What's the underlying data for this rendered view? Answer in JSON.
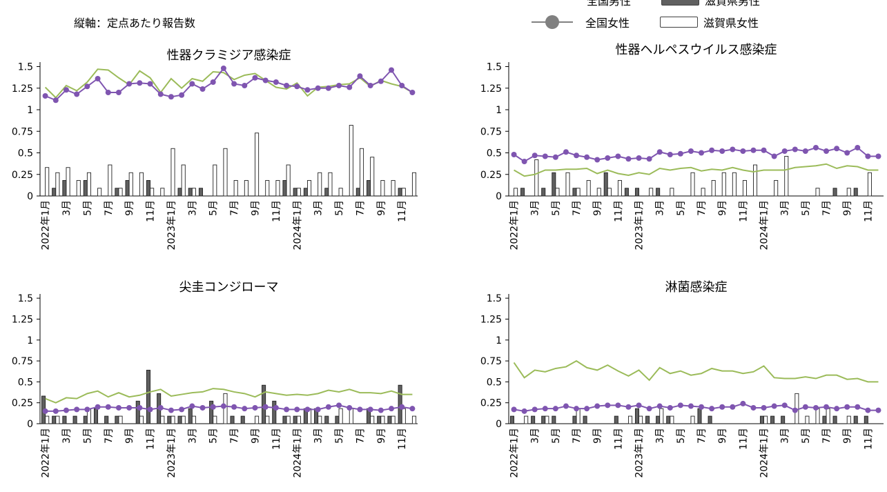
{
  "note": "縦軸：定点あたり報告数",
  "legend": {
    "national_male": "全国男性",
    "shiga_male": "滋賀県男性",
    "national_female": "全国女性",
    "shiga_female": "滋賀県女性"
  },
  "colors": {
    "national_male": "#9bbb59",
    "national_female": "#7f55b0",
    "shiga_male_fill": "#606060",
    "shiga_female_fill": "#ffffff",
    "bar_stroke": "#202020",
    "axis": "#000000"
  },
  "chart_data": [
    {
      "type": "bar",
      "title": "性器クラミジア感染症",
      "ylim": [
        0,
        1.6
      ],
      "yticks": [
        "0",
        "0.25",
        "0.5",
        "0.75",
        "1",
        "1.25",
        "1.5"
      ],
      "x_tick_labels": [
        "2022年1月",
        "3月",
        "5月",
        "7月",
        "9月",
        "11月",
        "2023年1月",
        "3月",
        "5月",
        "7月",
        "9月",
        "11月",
        "2024年1月",
        "3月",
        "5月",
        "7月",
        "9月",
        "11月"
      ],
      "series": [
        {
          "name": "全国男性",
          "kind": "line",
          "values": [
            1.26,
            1.14,
            1.28,
            1.22,
            1.32,
            1.47,
            1.46,
            1.37,
            1.29,
            1.45,
            1.37,
            1.2,
            1.36,
            1.25,
            1.36,
            1.33,
            1.44,
            1.43,
            1.35,
            1.4,
            1.42,
            1.34,
            1.26,
            1.24,
            1.31,
            1.16,
            1.26,
            1.27,
            1.29,
            1.3,
            1.37,
            1.27,
            1.34,
            1.3,
            1.27,
            1.2
          ]
        },
        {
          "name": "全国女性",
          "kind": "line-marker",
          "values": [
            1.16,
            1.11,
            1.23,
            1.18,
            1.27,
            1.36,
            1.2,
            1.2,
            1.3,
            1.31,
            1.3,
            1.18,
            1.15,
            1.17,
            1.3,
            1.24,
            1.32,
            1.48,
            1.3,
            1.28,
            1.37,
            1.34,
            1.32,
            1.28,
            1.27,
            1.23,
            1.25,
            1.25,
            1.28,
            1.26,
            1.39,
            1.28,
            1.33,
            1.46,
            1.28,
            1.2
          ]
        },
        {
          "name": "滋賀県男性",
          "kind": "bar",
          "values": [
            0,
            0.09,
            0.18,
            0,
            0.18,
            0,
            0,
            0.09,
            0.18,
            0,
            0.18,
            0,
            0,
            0.09,
            0.09,
            0.09,
            0,
            0,
            0,
            0,
            0,
            0,
            0,
            0.18,
            0.09,
            0.09,
            0,
            0.09,
            0,
            0,
            0.09,
            0.18,
            0,
            0,
            0.09,
            0
          ]
        },
        {
          "name": "滋賀県女性",
          "kind": "bar",
          "values": [
            0.33,
            0.27,
            0.33,
            0.18,
            0.27,
            0.09,
            0.36,
            0.09,
            0.27,
            0.27,
            0.09,
            0.09,
            0.55,
            0.36,
            0.09,
            0,
            0.36,
            0.55,
            0.18,
            0.18,
            0.73,
            0.18,
            0.18,
            0.36,
            0.09,
            0.18,
            0.27,
            0.27,
            0.09,
            0.82,
            0.55,
            0.45,
            0.18,
            0.18,
            0.09,
            0.27
          ]
        }
      ]
    },
    {
      "type": "bar",
      "title": "性器ヘルペスウイルス感染症",
      "ylim": [
        0,
        1.6
      ],
      "yticks": [
        "0",
        "0.25",
        "0.5",
        "0.75",
        "1",
        "1.25",
        "1.5"
      ],
      "x_tick_labels": [
        "2022年1月",
        "3月",
        "5月",
        "7月",
        "9月",
        "11月",
        "2023年1月",
        "3月",
        "5月",
        "7月",
        "9月",
        "11月",
        "2024年1月",
        "3月",
        "5月",
        "7月",
        "9月",
        "11月"
      ],
      "series": [
        {
          "name": "全国男性",
          "kind": "line",
          "values": [
            0.3,
            0.23,
            0.25,
            0.3,
            0.3,
            0.31,
            0.31,
            0.32,
            0.26,
            0.3,
            0.26,
            0.24,
            0.27,
            0.25,
            0.32,
            0.3,
            0.32,
            0.33,
            0.29,
            0.31,
            0.3,
            0.33,
            0.3,
            0.28,
            0.3,
            0.3,
            0.3,
            0.33,
            0.34,
            0.35,
            0.37,
            0.32,
            0.35,
            0.34,
            0.3,
            0.3
          ]
        },
        {
          "name": "全国女性",
          "kind": "line-marker",
          "values": [
            0.48,
            0.4,
            0.47,
            0.46,
            0.45,
            0.51,
            0.47,
            0.45,
            0.42,
            0.44,
            0.46,
            0.43,
            0.44,
            0.43,
            0.51,
            0.48,
            0.49,
            0.52,
            0.5,
            0.53,
            0.52,
            0.54,
            0.52,
            0.53,
            0.53,
            0.46,
            0.52,
            0.54,
            0.52,
            0.56,
            0.52,
            0.55,
            0.5,
            0.56,
            0.46,
            0.46
          ]
        },
        {
          "name": "滋賀県男性",
          "kind": "bar",
          "values": [
            0,
            0.09,
            0,
            0.09,
            0.27,
            0,
            0.09,
            0,
            0,
            0.27,
            0,
            0.09,
            0.09,
            0,
            0.09,
            0,
            0,
            0,
            0,
            0,
            0,
            0,
            0,
            0,
            0,
            0,
            0,
            0,
            0,
            0,
            0,
            0.09,
            0,
            0.09,
            0,
            0
          ]
        },
        {
          "name": "滋賀県女性",
          "kind": "bar",
          "values": [
            0.09,
            0,
            0.42,
            0,
            0.09,
            0.27,
            0.09,
            0.18,
            0.09,
            0.09,
            0.18,
            0,
            0,
            0.09,
            0,
            0.09,
            0,
            0.27,
            0.09,
            0.18,
            0.27,
            0.27,
            0.18,
            0.36,
            0,
            0.18,
            0.46,
            0,
            0,
            0.09,
            0,
            0,
            0.09,
            0,
            0.27,
            0
          ]
        }
      ]
    },
    {
      "type": "bar",
      "title": "尖圭コンジローマ",
      "ylim": [
        0,
        1.6
      ],
      "yticks": [
        "0",
        "0.25",
        "0.5",
        "0.75",
        "1",
        "1.25",
        "1.5"
      ],
      "x_tick_labels": [
        "2022年1月",
        "3月",
        "5月",
        "7月",
        "9月",
        "11月",
        "2023年1月",
        "3月",
        "5月",
        "7月",
        "9月",
        "11月",
        "2024年1月",
        "3月",
        "5月",
        "7月",
        "9月",
        "11月"
      ],
      "series": [
        {
          "name": "全国男性",
          "kind": "line",
          "values": [
            0.3,
            0.25,
            0.31,
            0.3,
            0.36,
            0.39,
            0.32,
            0.37,
            0.32,
            0.34,
            0.38,
            0.41,
            0.33,
            0.35,
            0.37,
            0.38,
            0.42,
            0.41,
            0.38,
            0.36,
            0.32,
            0.38,
            0.36,
            0.34,
            0.35,
            0.34,
            0.36,
            0.4,
            0.38,
            0.41,
            0.37,
            0.37,
            0.36,
            0.39,
            0.35,
            0.35
          ]
        },
        {
          "name": "全国女性",
          "kind": "line-marker",
          "values": [
            0.15,
            0.15,
            0.16,
            0.17,
            0.17,
            0.2,
            0.2,
            0.19,
            0.19,
            0.19,
            0.17,
            0.19,
            0.16,
            0.17,
            0.21,
            0.19,
            0.2,
            0.21,
            0.2,
            0.18,
            0.19,
            0.2,
            0.19,
            0.17,
            0.17,
            0.17,
            0.17,
            0.2,
            0.22,
            0.19,
            0.17,
            0.17,
            0.16,
            0.18,
            0.2,
            0.18
          ]
        },
        {
          "name": "滋賀県男性",
          "kind": "bar",
          "values": [
            0.33,
            0.09,
            0.09,
            0.09,
            0.09,
            0.18,
            0.09,
            0.09,
            0,
            0.27,
            0.64,
            0.36,
            0.09,
            0.09,
            0.18,
            0,
            0.27,
            0,
            0.09,
            0.09,
            0,
            0.46,
            0.27,
            0.09,
            0.09,
            0.18,
            0.18,
            0.09,
            0.09,
            0,
            0,
            0.18,
            0.09,
            0.09,
            0.46,
            0
          ]
        },
        {
          "name": "滋賀県女性",
          "kind": "bar",
          "values": [
            0.09,
            0.09,
            0,
            0,
            0.18,
            0,
            0,
            0.09,
            0,
            0.09,
            0,
            0.09,
            0.09,
            0.09,
            0.09,
            0,
            0.09,
            0.36,
            0,
            0,
            0.09,
            0.09,
            0,
            0.09,
            0.09,
            0.18,
            0.09,
            0,
            0.18,
            0.18,
            0,
            0.09,
            0.09,
            0.09,
            0.18,
            0.09
          ]
        }
      ]
    },
    {
      "type": "bar",
      "title": "淋菌感染症",
      "ylim": [
        0,
        1.6
      ],
      "yticks": [
        "0",
        "0.25",
        "0.5",
        "0.75",
        "1",
        "1.25",
        "1.5"
      ],
      "x_tick_labels": [
        "2022年1月",
        "3月",
        "5月",
        "7月",
        "9月",
        "11月",
        "2023年1月",
        "3月",
        "5月",
        "7月",
        "9月",
        "11月",
        "2024年1月",
        "3月",
        "5月",
        "7月",
        "9月",
        "11月"
      ],
      "series": [
        {
          "name": "全国男性",
          "kind": "line",
          "values": [
            0.73,
            0.55,
            0.64,
            0.62,
            0.66,
            0.68,
            0.75,
            0.67,
            0.64,
            0.7,
            0.63,
            0.57,
            0.64,
            0.52,
            0.67,
            0.6,
            0.63,
            0.58,
            0.6,
            0.66,
            0.63,
            0.63,
            0.6,
            0.62,
            0.69,
            0.55,
            0.54,
            0.54,
            0.56,
            0.54,
            0.58,
            0.58,
            0.53,
            0.54,
            0.5,
            0.5
          ]
        },
        {
          "name": "全国女性",
          "kind": "line-marker",
          "values": [
            0.17,
            0.15,
            0.17,
            0.18,
            0.18,
            0.21,
            0.18,
            0.18,
            0.21,
            0.22,
            0.22,
            0.2,
            0.22,
            0.18,
            0.21,
            0.19,
            0.22,
            0.21,
            0.2,
            0.18,
            0.2,
            0.2,
            0.24,
            0.19,
            0.19,
            0.21,
            0.22,
            0.16,
            0.2,
            0.19,
            0.2,
            0.18,
            0.2,
            0.2,
            0.16,
            0.16
          ]
        },
        {
          "name": "滋賀県男性",
          "kind": "bar",
          "values": [
            0.09,
            0,
            0.09,
            0.09,
            0.09,
            0,
            0.09,
            0.09,
            0,
            0,
            0.09,
            0,
            0.18,
            0.09,
            0.09,
            0.09,
            0,
            0,
            0.18,
            0.09,
            0,
            0,
            0,
            0,
            0.09,
            0.09,
            0.09,
            0,
            0,
            0,
            0.09,
            0.09,
            0,
            0.09,
            0.09,
            0
          ]
        },
        {
          "name": "滋賀県女性",
          "kind": "bar",
          "values": [
            0,
            0.09,
            0,
            0.09,
            0,
            0,
            0.18,
            0,
            0,
            0,
            0,
            0.09,
            0.09,
            0,
            0.18,
            0.09,
            0,
            0.09,
            0,
            0,
            0,
            0,
            0,
            0,
            0.09,
            0,
            0,
            0.36,
            0.09,
            0.18,
            0.18,
            0,
            0.09,
            0,
            0,
            0
          ]
        }
      ]
    }
  ]
}
